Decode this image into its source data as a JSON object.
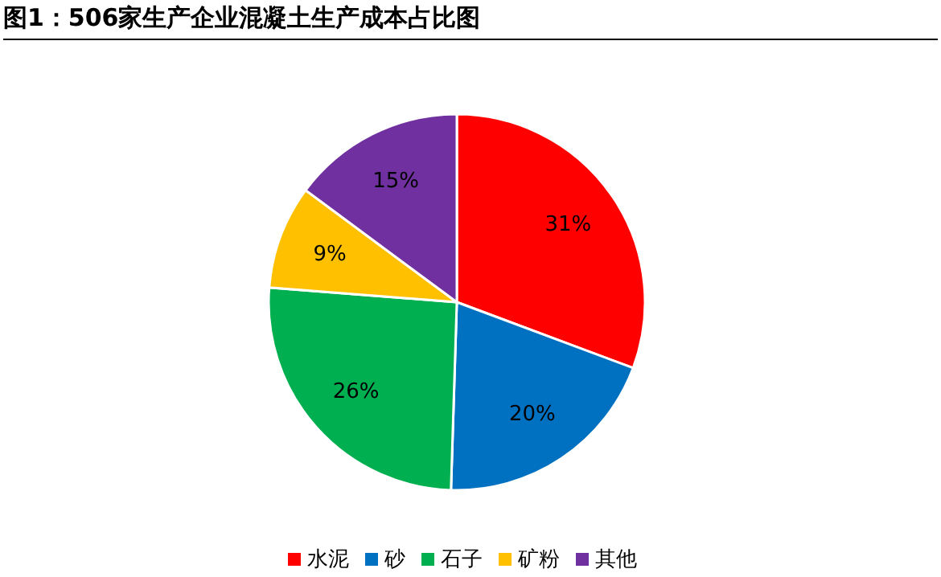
{
  "chart_data": {
    "type": "pie",
    "title": "图1：506家生产企业混凝土生产成本占比图",
    "categories": [
      "水泥",
      "砂",
      "石子",
      "矿粉",
      "其他"
    ],
    "values": [
      31,
      20,
      26,
      9,
      15
    ],
    "value_labels": [
      "31%",
      "20%",
      "26%",
      "9%",
      "15%"
    ],
    "colors": [
      "#ff0000",
      "#0070c0",
      "#00b050",
      "#ffc000",
      "#7030a0"
    ],
    "legend": "bottom"
  }
}
